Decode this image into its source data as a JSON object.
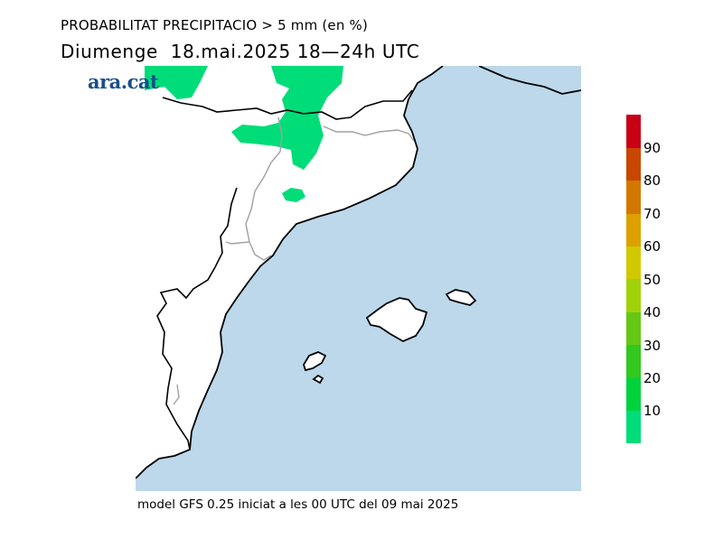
{
  "header": {
    "title": "PROBABILITAT PRECIPITACIO > 5 mm (en %)",
    "subtitle": "Diumenge  18.mai.2025 18—24h UTC"
  },
  "brand": {
    "logo_text": "ara.cat"
  },
  "footer": {
    "model_text": "model GFS 0.25 iniciat a les 00 UTC del 09 mai 2025"
  },
  "legend": {
    "colors": [
      "#00dc78",
      "#00d23c",
      "#32c81e",
      "#64c814",
      "#a0d20a",
      "#d2c800",
      "#dca000",
      "#d27800",
      "#c84600",
      "#c80014"
    ],
    "labels": [
      "10",
      "20",
      "30",
      "40",
      "50",
      "60",
      "70",
      "80",
      "90"
    ]
  },
  "map": {
    "sea_color": "#bcd8ea",
    "land_color": "#ffffff",
    "precip_color": "#00dc78"
  }
}
